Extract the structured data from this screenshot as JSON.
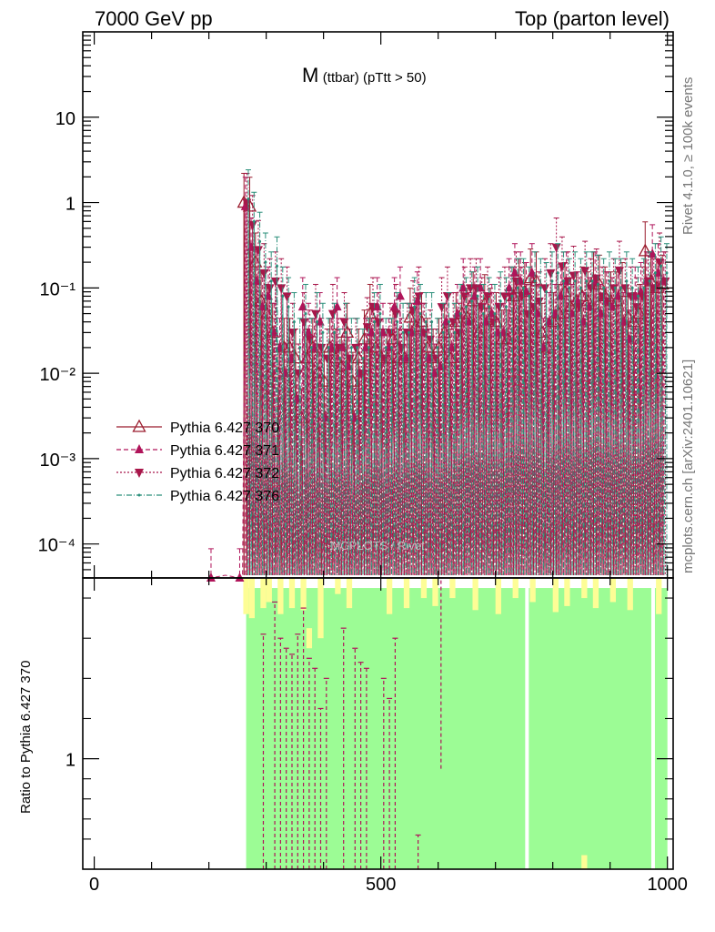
{
  "header": {
    "left": "7000 GeV pp",
    "right": "Top (parton level)"
  },
  "side_labels": {
    "rivet": "Rivet 4.1.0, ≥ 100k events",
    "mcplots": "mcplots.cern.ch [arXiv:2401.10621]"
  },
  "colors": {
    "s370": "#9b1c2e",
    "s371": "#b0145a",
    "s372": "#a8164a",
    "s376": "#2a8f7a",
    "band_green": "#9cfc95",
    "band_yellow": "#fdfd96"
  },
  "chart_data": {
    "type": "line",
    "title_main": "M",
    "title_sub": "(ttbar) (pTtt > 50)",
    "xlabel": "",
    "ylabel_main": "",
    "ylabel_ratio": "Ratio to Pythia 6.427 370",
    "x_range": [
      -20,
      1010
    ],
    "y_range_main": [
      4e-05,
      100
    ],
    "y_scale_main": "log",
    "y_range_ratio": [
      0.45,
      1.9
    ],
    "x_ticks": [
      0,
      500,
      1000
    ],
    "x_tick_labels": [
      "0",
      "500",
      "1000"
    ],
    "y_ticks_main": [
      0.0001,
      0.001,
      0.01,
      0.1,
      1,
      10
    ],
    "y_tick_labels_main": [
      "10⁻⁴",
      "10⁻³",
      "10⁻²",
      "10⁻¹",
      "1",
      "10"
    ],
    "y_ticks_ratio": [
      1
    ],
    "y_tick_labels_ratio": [
      "1"
    ],
    "legend_position": "middle-left",
    "bin_edges": [
      0,
      10,
      20,
      30,
      40,
      50,
      60,
      70,
      80,
      90,
      100,
      110,
      120,
      130,
      140,
      150,
      160,
      170,
      180,
      190,
      200,
      210,
      220,
      230,
      240,
      250,
      260,
      270,
      280,
      290,
      300,
      310,
      320,
      330,
      340,
      350,
      360,
      370,
      380,
      390,
      400,
      410,
      420,
      430,
      440,
      450,
      460,
      470,
      480,
      490,
      500,
      510,
      520,
      530,
      540,
      550,
      560,
      570,
      580,
      590,
      600,
      610,
      620,
      630,
      640,
      650,
      660,
      670,
      680,
      690,
      700,
      710,
      720,
      730,
      740,
      750,
      760,
      770,
      780,
      790,
      800,
      810,
      820,
      830,
      840,
      850,
      860,
      870,
      880,
      890,
      900,
      910,
      920,
      930,
      940,
      950,
      960,
      970,
      980,
      990,
      1000
    ],
    "series": [
      {
        "name": "Pythia 6.427 370",
        "x": [
          265,
          275,
          285,
          295,
          305,
          315,
          325,
          335,
          345,
          355,
          365,
          375,
          385,
          395,
          405,
          415,
          425,
          435,
          445,
          455,
          465,
          475,
          485,
          495,
          505,
          515,
          525,
          535,
          545,
          555,
          565,
          575,
          585,
          595,
          605,
          615,
          625,
          635,
          645,
          655,
          665,
          675,
          685,
          695,
          705,
          715,
          725,
          735,
          745,
          755,
          765,
          775,
          785,
          795,
          805,
          815,
          825,
          835,
          845,
          855,
          865,
          875,
          885,
          895,
          905,
          915,
          925,
          935,
          945,
          955,
          965,
          975,
          985,
          995
        ],
        "y": [
          1.0,
          0.9,
          0.2,
          0.07,
          0.05,
          0.03,
          0.01,
          0.02,
          0.02,
          0.015,
          0.003,
          0.015,
          0.02,
          0.01,
          0.008,
          0.02,
          0.015,
          0.012,
          0.03,
          0.008,
          0.015,
          0.025,
          0.05,
          0.02,
          0.015,
          0.015,
          0.025,
          0.015,
          0.015,
          0.045,
          0.035,
          0.04,
          0.02,
          0.015,
          0.02,
          0.03,
          0.015,
          0.04,
          0.05,
          0.045,
          0.07,
          0.03,
          0.065,
          0.045,
          0.04,
          0.025,
          0.025,
          0.08,
          0.1,
          0.09,
          0.13,
          0.12,
          0.03,
          0.02,
          0.04,
          0.05,
          0.09,
          0.06,
          0.07,
          0.08,
          0.07,
          0.12,
          0.11,
          0.08,
          0.07,
          0.07,
          0.09,
          0.045,
          0.04,
          0.05,
          0.27,
          0.12,
          0.1,
          0.11
        ],
        "style": "solid, open triangle up"
      },
      {
        "name": "Pythia 6.427 371",
        "x": [
          205,
          255,
          265,
          275,
          285,
          295,
          305,
          315,
          325,
          335,
          345,
          355,
          365,
          375,
          385,
          395,
          405,
          415,
          425,
          435,
          445,
          455,
          465,
          475,
          485,
          495,
          505,
          515,
          525,
          535,
          545,
          555,
          565,
          575,
          585,
          595,
          605,
          615,
          625,
          635,
          645,
          655,
          665,
          675,
          685,
          695,
          705,
          715,
          725,
          735,
          745,
          755,
          765,
          775,
          785,
          795,
          805,
          815,
          825,
          835,
          845,
          855,
          865,
          875,
          885,
          895,
          905,
          915,
          925,
          935,
          945,
          955,
          965,
          975,
          985,
          995
        ],
        "y": [
          4e-05,
          4e-05,
          0.9,
          0.3,
          0.12,
          0.06,
          0.08,
          0.03,
          0.02,
          0.01,
          0.015,
          0.005,
          0.06,
          0.03,
          0.02,
          0.04,
          0.003,
          0.02,
          0.06,
          0.02,
          0.012,
          0.003,
          0.01,
          0.02,
          0.03,
          0.06,
          0.03,
          0.02,
          0.06,
          0.08,
          0.015,
          0.03,
          0.07,
          0.03,
          0.015,
          0.01,
          0.012,
          0.04,
          0.02,
          0.05,
          0.1,
          0.04,
          0.08,
          0.1,
          0.04,
          0.05,
          0.03,
          0.03,
          0.1,
          0.15,
          0.12,
          0.09,
          0.15,
          0.05,
          0.02,
          0.04,
          0.05,
          0.08,
          0.12,
          0.05,
          0.07,
          0.04,
          0.06,
          0.12,
          0.05,
          0.07,
          0.06,
          0.08,
          0.04,
          0.025,
          0.08,
          0.09,
          0.12,
          0.25,
          0.15,
          0.12
        ],
        "style": "dashed, filled triangle up"
      },
      {
        "name": "Pythia 6.427 372",
        "x": [
          265,
          275,
          285,
          295,
          305,
          315,
          325,
          335,
          345,
          355,
          365,
          375,
          385,
          395,
          405,
          415,
          425,
          435,
          445,
          455,
          465,
          475,
          485,
          495,
          505,
          515,
          525,
          535,
          545,
          555,
          565,
          575,
          585,
          595,
          605,
          615,
          625,
          635,
          645,
          655,
          665,
          675,
          685,
          695,
          705,
          715,
          725,
          735,
          745,
          755,
          765,
          775,
          785,
          795,
          805,
          815,
          825,
          835,
          845,
          855,
          865,
          875,
          885,
          895,
          905,
          915,
          925,
          935,
          945,
          955,
          965,
          975,
          985,
          995
        ],
        "y": [
          1.0,
          0.55,
          0.28,
          0.15,
          0.1,
          0.12,
          0.1,
          0.08,
          0.03,
          0.01,
          0.04,
          0.025,
          0.05,
          0.02,
          0.015,
          0.05,
          0.02,
          0.04,
          0.015,
          0.02,
          0.01,
          0.035,
          0.06,
          0.04,
          0.015,
          0.03,
          0.05,
          0.02,
          0.03,
          0.055,
          0.08,
          0.03,
          0.025,
          0.015,
          0.06,
          0.08,
          0.04,
          0.03,
          0.08,
          0.1,
          0.1,
          0.06,
          0.08,
          0.04,
          0.06,
          0.08,
          0.08,
          0.12,
          0.08,
          0.05,
          0.06,
          0.07,
          0.1,
          0.15,
          0.3,
          0.18,
          0.12,
          0.14,
          0.06,
          0.16,
          0.1,
          0.13,
          0.08,
          0.07,
          0.1,
          0.16,
          0.1,
          0.08,
          0.06,
          0.08,
          0.12,
          0.1,
          0.2,
          0.12
        ],
        "style": "dotted, filled triangle down"
      },
      {
        "name": "Pythia 6.427 376",
        "x": [
          265,
          275,
          285,
          295,
          305,
          315,
          325,
          335,
          345,
          355,
          365,
          375,
          385,
          395,
          405,
          415,
          425,
          435,
          445,
          455,
          465,
          475,
          485,
          495,
          505,
          515,
          525,
          535,
          545,
          555,
          565,
          575,
          585,
          595,
          605,
          615,
          625,
          635,
          645,
          655,
          665,
          675,
          685,
          695,
          705,
          715,
          725,
          735,
          745,
          755,
          765,
          775,
          785,
          795,
          805,
          815,
          825,
          835,
          845,
          855,
          865,
          875,
          885,
          895,
          905,
          915,
          925,
          935,
          945,
          955,
          965,
          975,
          985,
          995
        ],
        "y": [
          1.1,
          0.6,
          0.35,
          0.2,
          0.12,
          0.18,
          0.08,
          0.06,
          0.04,
          0.02,
          0.05,
          0.02,
          0.04,
          0.03,
          0.02,
          0.03,
          0.015,
          0.03,
          0.02,
          0.02,
          0.015,
          0.02,
          0.04,
          0.05,
          0.02,
          0.02,
          0.04,
          0.03,
          0.03,
          0.06,
          0.05,
          0.04,
          0.04,
          0.02,
          0.03,
          0.04,
          0.03,
          0.05,
          0.06,
          0.07,
          0.08,
          0.05,
          0.06,
          0.05,
          0.07,
          0.06,
          0.08,
          0.1,
          0.1,
          0.08,
          0.12,
          0.1,
          0.09,
          0.12,
          0.15,
          0.12,
          0.1,
          0.12,
          0.1,
          0.12,
          0.12,
          0.11,
          0.1,
          0.12,
          0.1,
          0.1,
          0.12,
          0.1,
          0.08,
          0.1,
          0.12,
          0.15,
          0.18,
          0.15
        ],
        "style": "dash-dot, small marker"
      }
    ],
    "ratio_band": {
      "x_from": 265,
      "x_to": 1000,
      "green": [
        0.45,
        1.85
      ],
      "yellow_bins": [
        {
          "x": 265,
          "lo": 1.72,
          "hi": 1.9
        },
        {
          "x": 275,
          "lo": 1.7,
          "hi": 1.9
        },
        {
          "x": 295,
          "lo": 1.75,
          "hi": 1.9
        },
        {
          "x": 305,
          "lo": 1.78,
          "hi": 1.9
        },
        {
          "x": 325,
          "lo": 1.72,
          "hi": 1.9
        },
        {
          "x": 345,
          "lo": 1.75,
          "hi": 1.9
        },
        {
          "x": 365,
          "lo": 1.74,
          "hi": 1.9
        },
        {
          "x": 375,
          "lo": 1.55,
          "hi": 1.65
        },
        {
          "x": 395,
          "lo": 1.6,
          "hi": 1.9
        },
        {
          "x": 425,
          "lo": 1.82,
          "hi": 1.9
        },
        {
          "x": 445,
          "lo": 1.75,
          "hi": 1.9
        },
        {
          "x": 515,
          "lo": 1.72,
          "hi": 1.9
        },
        {
          "x": 545,
          "lo": 1.75,
          "hi": 1.9
        },
        {
          "x": 575,
          "lo": 1.8,
          "hi": 1.9
        },
        {
          "x": 595,
          "lo": 1.76,
          "hi": 1.9
        },
        {
          "x": 625,
          "lo": 1.8,
          "hi": 1.9
        },
        {
          "x": 665,
          "lo": 1.74,
          "hi": 1.9
        },
        {
          "x": 705,
          "lo": 1.72,
          "hi": 1.9
        },
        {
          "x": 735,
          "lo": 1.8,
          "hi": 1.9
        },
        {
          "x": 765,
          "lo": 1.78,
          "hi": 1.9
        },
        {
          "x": 805,
          "lo": 1.73,
          "hi": 1.9
        },
        {
          "x": 825,
          "lo": 1.76,
          "hi": 1.9
        },
        {
          "x": 855,
          "lo": 1.8,
          "hi": 1.9
        },
        {
          "x": 875,
          "lo": 1.75,
          "hi": 1.9
        },
        {
          "x": 905,
          "lo": 1.78,
          "hi": 1.9
        },
        {
          "x": 935,
          "lo": 1.74,
          "hi": 1.9
        },
        {
          "x": 985,
          "lo": 1.72,
          "hi": 1.9
        },
        {
          "x": 855,
          "lo": 0.45,
          "hi": 0.52
        }
      ],
      "white_gaps": [
        {
          "x": 755
        },
        {
          "x": 975
        }
      ]
    },
    "ratio_lines_371": [
      {
        "x": 295,
        "lo": 0.45,
        "hi": 1.62
      },
      {
        "x": 315,
        "lo": 0.45,
        "hi": 1.78
      },
      {
        "x": 325,
        "lo": 0.45,
        "hi": 1.6
      },
      {
        "x": 335,
        "lo": 0.45,
        "hi": 1.55
      },
      {
        "x": 345,
        "lo": 0.45,
        "hi": 1.52
      },
      {
        "x": 355,
        "lo": 0.45,
        "hi": 1.62
      },
      {
        "x": 365,
        "lo": 0.45,
        "hi": 1.75
      },
      {
        "x": 375,
        "lo": 0.45,
        "hi": 1.5
      },
      {
        "x": 385,
        "lo": 0.45,
        "hi": 1.45
      },
      {
        "x": 395,
        "lo": 0.45,
        "hi": 1.25
      },
      {
        "x": 405,
        "lo": 0.45,
        "hi": 1.4
      },
      {
        "x": 435,
        "lo": 0.45,
        "hi": 1.65
      },
      {
        "x": 455,
        "lo": 0.45,
        "hi": 1.55
      },
      {
        "x": 465,
        "lo": 0.45,
        "hi": 1.48
      },
      {
        "x": 475,
        "lo": 0.45,
        "hi": 1.45
      },
      {
        "x": 505,
        "lo": 0.45,
        "hi": 1.4
      },
      {
        "x": 515,
        "lo": 0.45,
        "hi": 1.3
      },
      {
        "x": 525,
        "lo": 0.45,
        "hi": 1.6
      },
      {
        "x": 565,
        "lo": 0.45,
        "hi": 0.62
      },
      {
        "x": 605,
        "lo": 0.95,
        "hi": 1.9
      }
    ]
  },
  "legend": [
    {
      "label": "Pythia 6.427 370"
    },
    {
      "label": "Pythia 6.427 371"
    },
    {
      "label": "Pythia 6.427 372"
    },
    {
      "label": "Pythia 6.427 376"
    }
  ],
  "watermark": "MCPLOTS / Rivet"
}
